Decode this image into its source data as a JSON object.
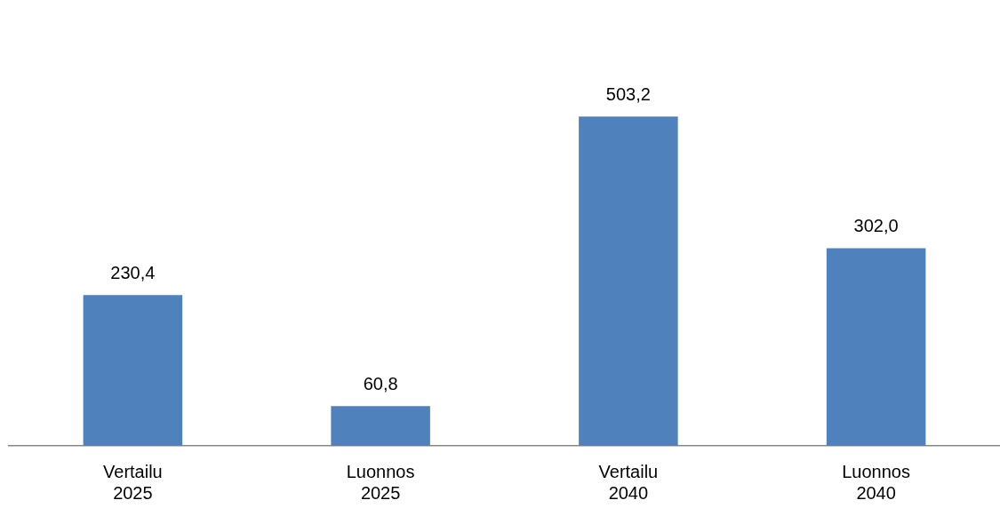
{
  "chart_data": {
    "type": "bar",
    "categories": [
      "Vertailu 2025",
      "Luonnos 2025",
      "Vertailu 2040",
      "Luonnos 2040"
    ],
    "values": [
      230.4,
      60.8,
      503.2,
      302.0
    ],
    "value_labels": [
      "230,4",
      "60,8",
      "503,2",
      "302,0"
    ],
    "color": "#4f81bd",
    "grid": false,
    "legend": false
  }
}
